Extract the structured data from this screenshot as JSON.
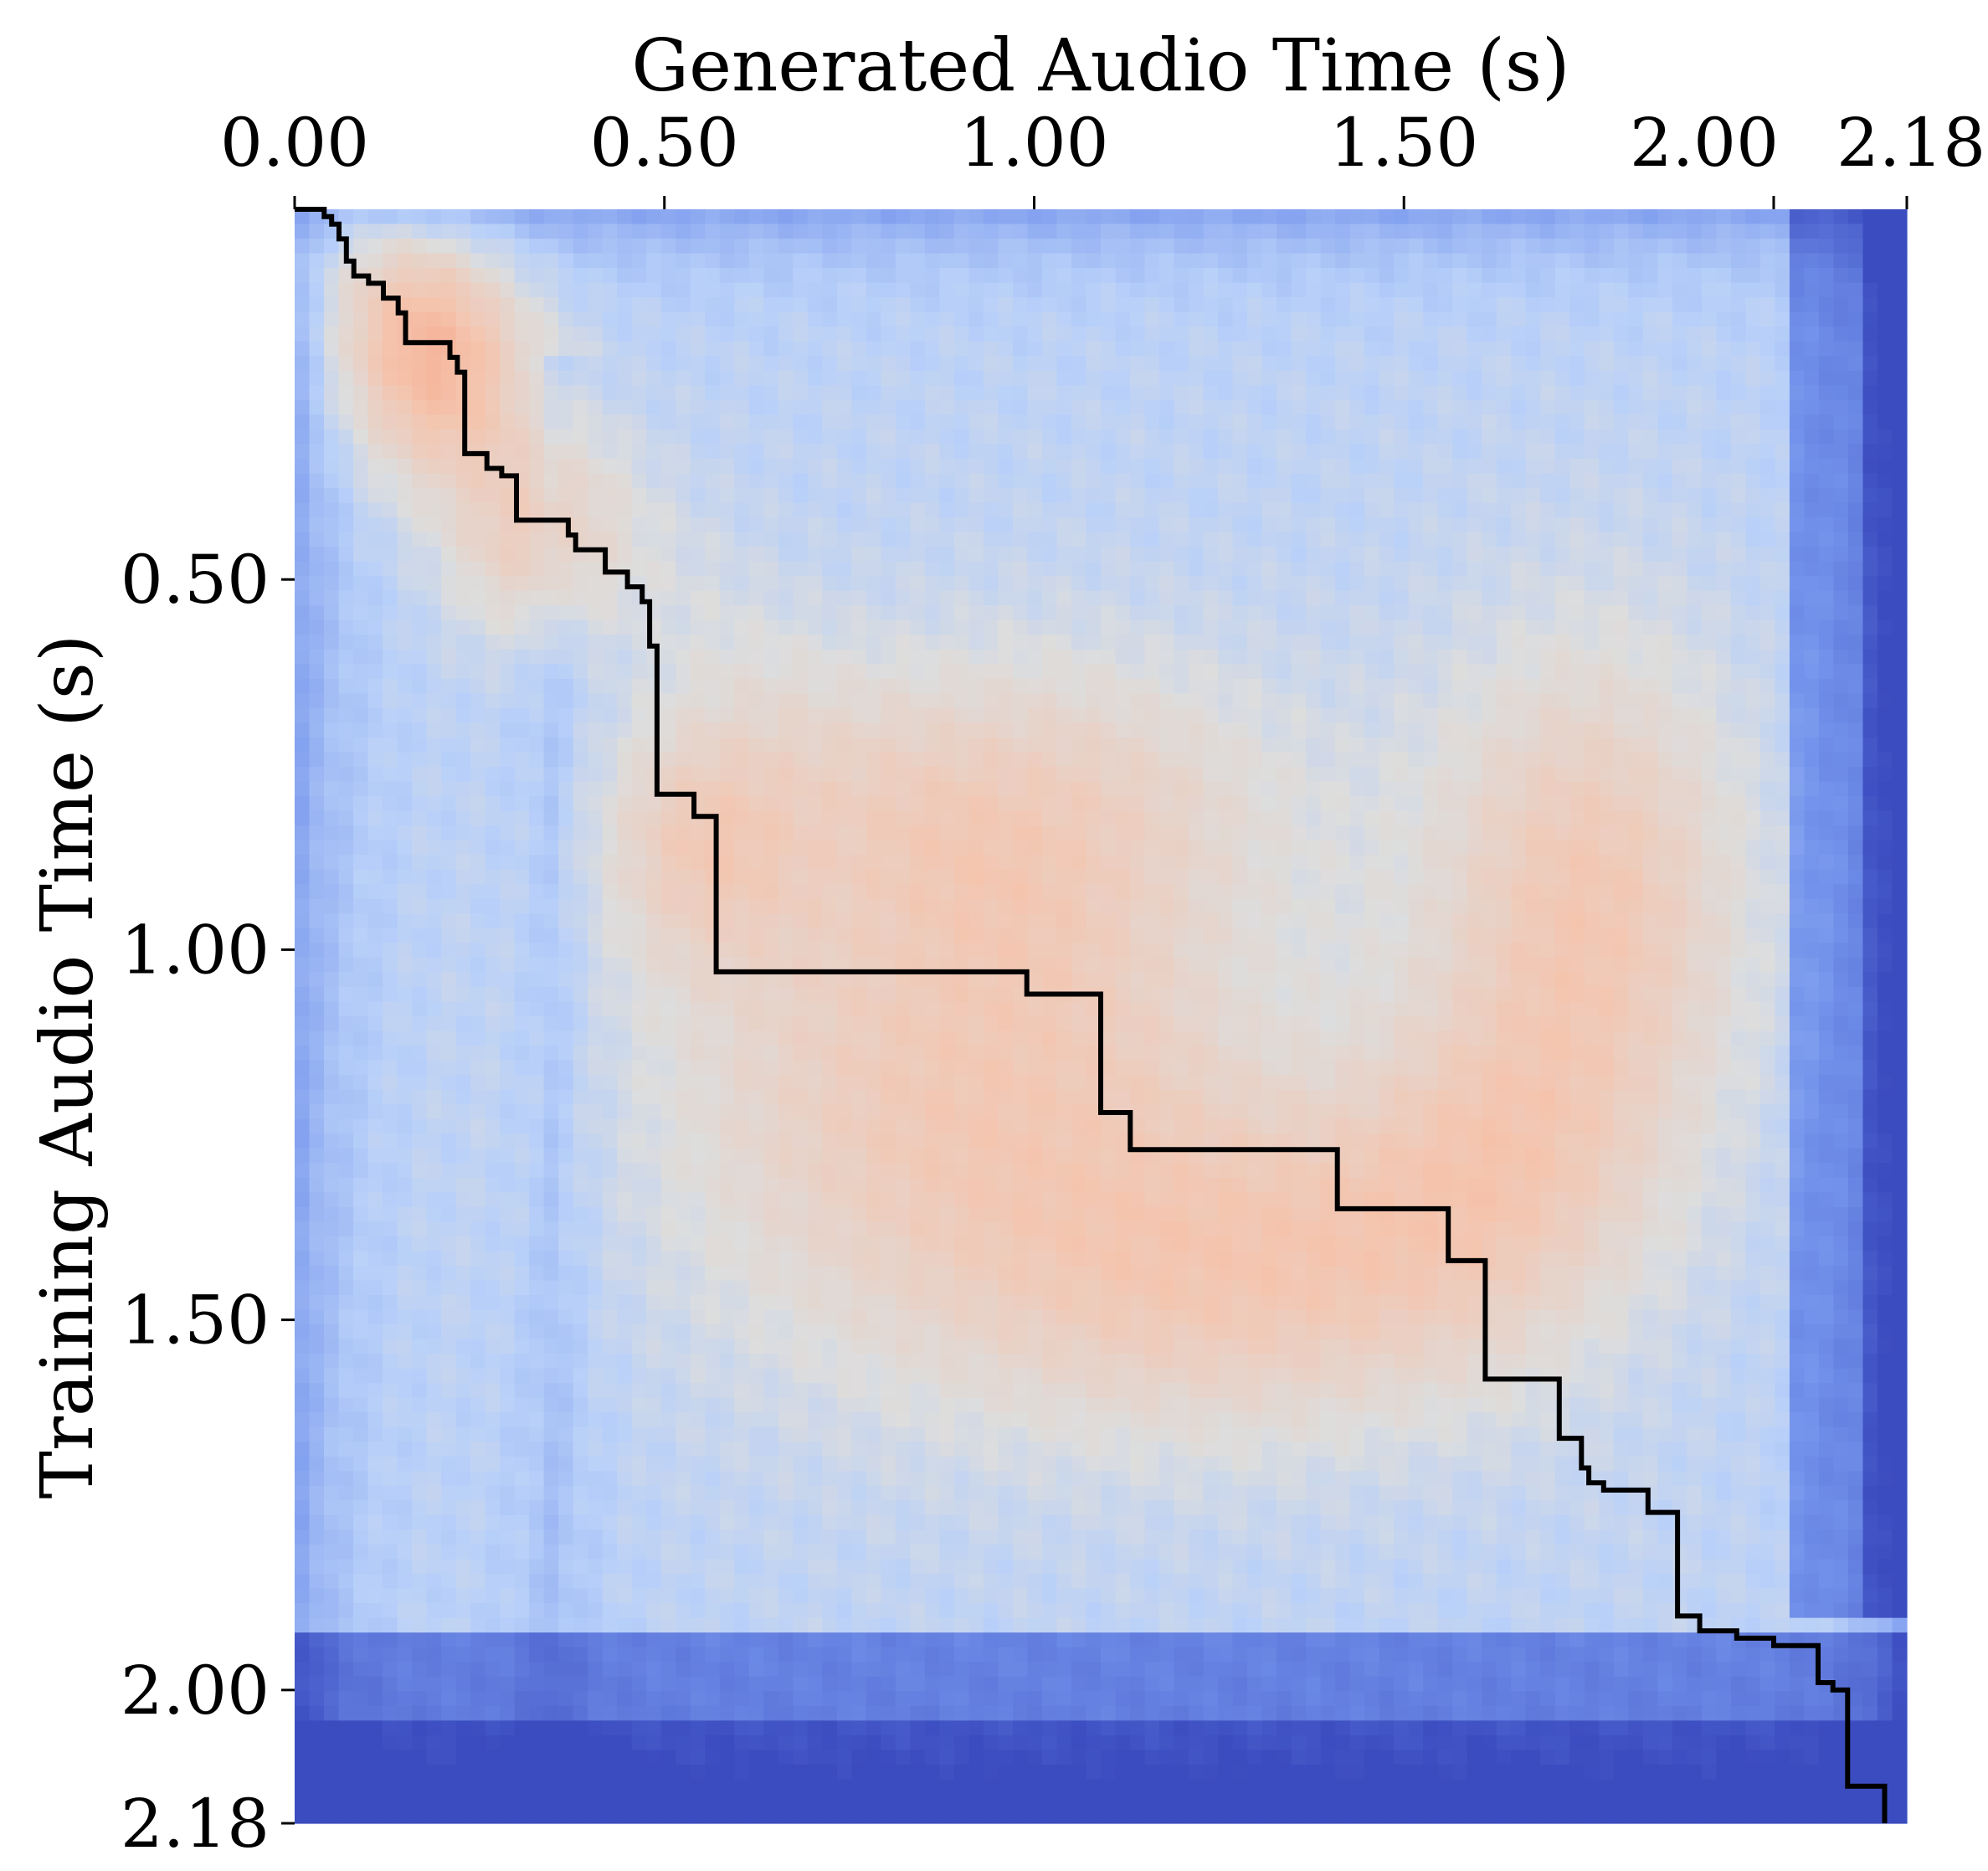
{
  "chart_data": {
    "type": "heatmap",
    "title": "",
    "xlabel": "Generated Audio Time (s)",
    "ylabel": "Training Audio Time (s)",
    "xlim": [
      0,
      2.18
    ],
    "ylim": [
      0,
      2.18
    ],
    "x_axis_position": "top",
    "y_axis_inverted": true,
    "x_ticks": [
      {
        "value": 0.0,
        "label": "0.00"
      },
      {
        "value": 0.5,
        "label": "0.50"
      },
      {
        "value": 1.0,
        "label": "1.00"
      },
      {
        "value": 1.5,
        "label": "1.50"
      },
      {
        "value": 2.0,
        "label": "2.00"
      },
      {
        "value": 2.18,
        "label": "2.18"
      }
    ],
    "y_ticks": [
      {
        "value": 0.5,
        "label": "0.50"
      },
      {
        "value": 1.0,
        "label": "1.00"
      },
      {
        "value": 1.5,
        "label": "1.50"
      },
      {
        "value": 2.0,
        "label": "2.00"
      },
      {
        "value": 2.18,
        "label": "2.18"
      }
    ],
    "colormap": "coolwarm",
    "colors": {
      "low": "#3b4cc0",
      "mid": "#dddddd",
      "high": "#f4987a",
      "path": "#000000"
    },
    "grid": false,
    "legend": "none",
    "warm_regions": [
      {
        "x": 0.18,
        "y": 0.2,
        "sx": 0.09,
        "sy": 0.12,
        "w": 0.8
      },
      {
        "x": 0.32,
        "y": 0.45,
        "sx": 0.08,
        "sy": 0.1,
        "w": 0.55
      },
      {
        "x": 0.55,
        "y": 0.85,
        "sx": 0.1,
        "sy": 0.12,
        "w": 0.5
      },
      {
        "x": 0.9,
        "y": 1.2,
        "sx": 0.28,
        "sy": 0.25,
        "w": 0.65
      },
      {
        "x": 1.0,
        "y": 0.8,
        "sx": 0.25,
        "sy": 0.15,
        "w": 0.45
      },
      {
        "x": 1.3,
        "y": 1.45,
        "sx": 0.25,
        "sy": 0.15,
        "w": 0.55
      },
      {
        "x": 1.75,
        "y": 0.95,
        "sx": 0.15,
        "sy": 0.25,
        "w": 0.7
      },
      {
        "x": 1.6,
        "y": 1.3,
        "sx": 0.15,
        "sy": 0.15,
        "w": 0.45
      }
    ],
    "alignment_path": [
      [
        0.0,
        0.0
      ],
      [
        0.04,
        0.0
      ],
      [
        0.04,
        0.01
      ],
      [
        0.05,
        0.01
      ],
      [
        0.05,
        0.02
      ],
      [
        0.06,
        0.02
      ],
      [
        0.06,
        0.04
      ],
      [
        0.07,
        0.04
      ],
      [
        0.07,
        0.07
      ],
      [
        0.08,
        0.07
      ],
      [
        0.08,
        0.09
      ],
      [
        0.1,
        0.09
      ],
      [
        0.1,
        0.1
      ],
      [
        0.12,
        0.1
      ],
      [
        0.12,
        0.12
      ],
      [
        0.14,
        0.12
      ],
      [
        0.14,
        0.14
      ],
      [
        0.15,
        0.14
      ],
      [
        0.15,
        0.18
      ],
      [
        0.21,
        0.18
      ],
      [
        0.21,
        0.2
      ],
      [
        0.22,
        0.2
      ],
      [
        0.22,
        0.22
      ],
      [
        0.23,
        0.22
      ],
      [
        0.23,
        0.33
      ],
      [
        0.26,
        0.33
      ],
      [
        0.26,
        0.35
      ],
      [
        0.28,
        0.35
      ],
      [
        0.28,
        0.36
      ],
      [
        0.3,
        0.36
      ],
      [
        0.3,
        0.42
      ],
      [
        0.37,
        0.42
      ],
      [
        0.37,
        0.44
      ],
      [
        0.38,
        0.44
      ],
      [
        0.38,
        0.46
      ],
      [
        0.42,
        0.46
      ],
      [
        0.42,
        0.49
      ],
      [
        0.45,
        0.49
      ],
      [
        0.45,
        0.51
      ],
      [
        0.47,
        0.51
      ],
      [
        0.47,
        0.53
      ],
      [
        0.48,
        0.53
      ],
      [
        0.48,
        0.59
      ],
      [
        0.49,
        0.59
      ],
      [
        0.49,
        0.79
      ],
      [
        0.54,
        0.79
      ],
      [
        0.54,
        0.82
      ],
      [
        0.57,
        0.82
      ],
      [
        0.57,
        1.03
      ],
      [
        0.99,
        1.03
      ],
      [
        0.99,
        1.06
      ],
      [
        1.09,
        1.06
      ],
      [
        1.09,
        1.22
      ],
      [
        1.13,
        1.22
      ],
      [
        1.13,
        1.27
      ],
      [
        1.41,
        1.27
      ],
      [
        1.41,
        1.35
      ],
      [
        1.56,
        1.35
      ],
      [
        1.56,
        1.42
      ],
      [
        1.61,
        1.42
      ],
      [
        1.61,
        1.58
      ],
      [
        1.71,
        1.58
      ],
      [
        1.71,
        1.66
      ],
      [
        1.74,
        1.66
      ],
      [
        1.74,
        1.7
      ],
      [
        1.75,
        1.7
      ],
      [
        1.75,
        1.72
      ],
      [
        1.77,
        1.72
      ],
      [
        1.77,
        1.73
      ],
      [
        1.83,
        1.73
      ],
      [
        1.83,
        1.76
      ],
      [
        1.87,
        1.76
      ],
      [
        1.87,
        1.9
      ],
      [
        1.9,
        1.9
      ],
      [
        1.9,
        1.92
      ],
      [
        1.95,
        1.92
      ],
      [
        1.95,
        1.93
      ],
      [
        2.0,
        1.93
      ],
      [
        2.0,
        1.94
      ],
      [
        2.06,
        1.94
      ],
      [
        2.06,
        1.99
      ],
      [
        2.08,
        1.99
      ],
      [
        2.08,
        2.0
      ],
      [
        2.1,
        2.0
      ],
      [
        2.1,
        2.13
      ],
      [
        2.15,
        2.13
      ],
      [
        2.15,
        2.18
      ]
    ]
  }
}
